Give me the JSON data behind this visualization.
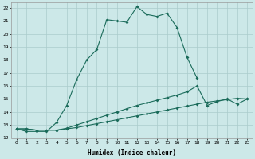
{
  "xlabel": "Humidex (Indice chaleur)",
  "bg_color": "#cce8e8",
  "grid_color": "#aacccc",
  "line_color": "#1a6b5a",
  "xlim": [
    -0.5,
    23.5
  ],
  "ylim": [
    12,
    22.4
  ],
  "xticks": [
    0,
    1,
    2,
    3,
    4,
    5,
    6,
    7,
    8,
    9,
    10,
    11,
    12,
    13,
    14,
    15,
    16,
    17,
    18,
    19,
    20,
    21,
    22,
    23
  ],
  "yticks": [
    12,
    13,
    14,
    15,
    16,
    17,
    18,
    19,
    20,
    21,
    22
  ],
  "curve1_x": [
    0,
    1,
    2,
    3,
    4,
    5,
    6,
    7,
    8,
    9,
    10,
    11,
    12,
    13,
    14,
    15,
    16,
    17,
    18
  ],
  "curve1_y": [
    12.7,
    12.5,
    12.5,
    12.5,
    13.2,
    14.5,
    16.5,
    18.0,
    18.8,
    21.1,
    21.0,
    20.9,
    22.1,
    21.5,
    21.35,
    21.6,
    20.5,
    18.2,
    16.6
  ],
  "curve2_x": [
    0,
    1,
    2,
    3,
    4,
    5,
    6,
    7,
    8,
    9,
    10,
    11,
    12,
    13,
    14,
    15,
    16,
    17,
    18,
    19,
    20,
    21,
    22,
    23
  ],
  "curve2_y": [
    12.7,
    12.7,
    12.6,
    12.6,
    12.6,
    12.75,
    13.0,
    13.25,
    13.5,
    13.75,
    14.0,
    14.25,
    14.5,
    14.7,
    14.9,
    15.1,
    15.3,
    15.55,
    16.0,
    14.5,
    14.8,
    15.0,
    14.6,
    15.0
  ],
  "curve3_x": [
    0,
    1,
    2,
    3,
    4,
    5,
    6,
    7,
    8,
    9,
    10,
    11,
    12,
    13,
    14,
    15,
    16,
    17,
    18,
    19,
    20,
    21,
    22,
    23
  ],
  "curve3_y": [
    12.7,
    12.7,
    12.6,
    12.6,
    12.6,
    12.7,
    12.8,
    12.95,
    13.1,
    13.25,
    13.4,
    13.55,
    13.7,
    13.85,
    14.0,
    14.15,
    14.3,
    14.45,
    14.6,
    14.75,
    14.85,
    14.95,
    15.05,
    15.0
  ]
}
